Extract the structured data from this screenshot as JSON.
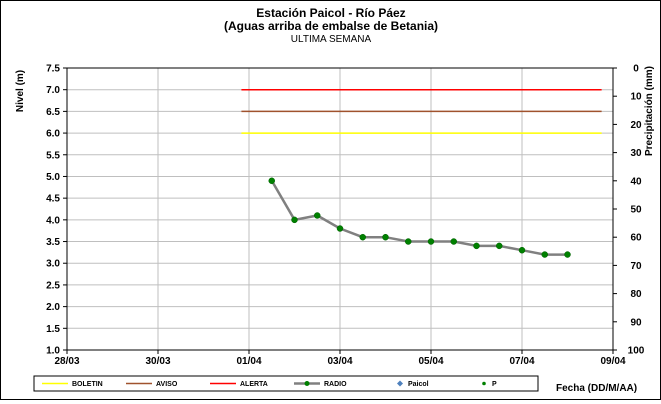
{
  "chart_data": {
    "type": "line",
    "title": "Estación Paicol  - Río Páez",
    "subtitle": "(Aguas arriba de embalse de Betania)",
    "subtitle2": "ULTIMA SEMANA",
    "ylabel": "Nivel (m)",
    "y2label": "Precipitación (mm)",
    "xlabel": "Fecha  (DD/M/AA)",
    "x_ticks": [
      "28/03",
      "30/03",
      "01/04",
      "03/04",
      "05/04",
      "07/04",
      "09/04"
    ],
    "y_ticks": [
      "1.0",
      "1.5",
      "2.0",
      "2.5",
      "3.0",
      "3.5",
      "4.0",
      "4.5",
      "5.0",
      "5.5",
      "6.0",
      "6.5",
      "7.0",
      "7.5"
    ],
    "y2_ticks": [
      "0",
      "10",
      "20",
      "30",
      "40",
      "50",
      "60",
      "70",
      "80",
      "90",
      "100"
    ],
    "xlim": [
      "28/03",
      "09/04"
    ],
    "ylim": [
      1.0,
      7.5
    ],
    "y2lim": [
      100,
      0
    ],
    "grid": true,
    "thresholds": [
      {
        "name": "BOLETIN",
        "value": 6.0,
        "color": "#ffff00",
        "x_start": "31/03 20:00",
        "x_end": "08/04 18:00"
      },
      {
        "name": "AVISO",
        "value": 6.5,
        "color": "#a0522d",
        "x_start": "31/03 20:00",
        "x_end": "08/04 18:00"
      },
      {
        "name": "ALERTA",
        "value": 7.0,
        "color": "#ff0000",
        "x_start": "31/03 20:00",
        "x_end": "08/04 18:00"
      }
    ],
    "series": [
      {
        "name": "RADIO",
        "color": "#808080",
        "marker_color": "#008000",
        "x": [
          "01/04 12:00",
          "02/04 00:00",
          "02/04 12:00",
          "03/04 00:00",
          "03/04 12:00",
          "04/04 00:00",
          "04/04 12:00",
          "05/04 00:00",
          "05/04 12:00",
          "06/04 00:00",
          "06/04 12:00",
          "07/04 00:00",
          "07/04 12:00",
          "08/04 00:00"
        ],
        "values": [
          4.9,
          4.0,
          4.1,
          3.8,
          3.6,
          3.6,
          3.5,
          3.5,
          3.5,
          3.4,
          3.4,
          3.3,
          3.2,
          3.2
        ]
      }
    ],
    "legend": [
      {
        "name": "BOLETIN",
        "color": "#ffff00",
        "kind": "line"
      },
      {
        "name": "AVISO",
        "color": "#a0522d",
        "kind": "line"
      },
      {
        "name": "ALERTA",
        "color": "#ff0000",
        "kind": "line"
      },
      {
        "name": "RADIO",
        "color": "#808080",
        "kind": "line-marker",
        "marker_color": "#008000"
      },
      {
        "name": "Paicol",
        "color": "#4f81bd",
        "kind": "diamond"
      },
      {
        "name": "P",
        "color": "#008000",
        "kind": "dot"
      }
    ],
    "legend_position": "bottom"
  }
}
